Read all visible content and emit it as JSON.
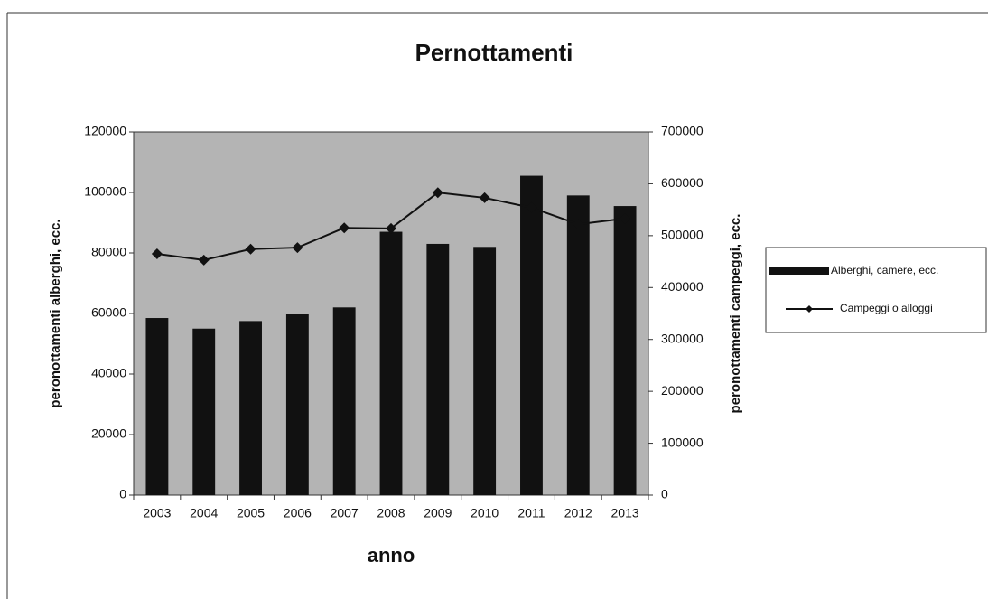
{
  "chart_data": {
    "type": "combo",
    "title": "Pernottamenti",
    "x_label": "anno",
    "y_label": "peronottamenti alberghi, ecc.",
    "y2_label": "peronottamenti campeggi, ecc.",
    "categories": [
      "2003",
      "2004",
      "2005",
      "2006",
      "2007",
      "2008",
      "2009",
      "2010",
      "2011",
      "2012",
      "2013"
    ],
    "series": [
      {
        "name": "Alberghi, camere, ecc.",
        "type": "bar",
        "color": "#111111",
        "values": [
          58500,
          55000,
          57500,
          60000,
          62000,
          87000,
          83000,
          82000,
          105500,
          99000,
          95500
        ]
      },
      {
        "name": "Campeggi o alloggi",
        "type": "line",
        "axis": "y2",
        "color": "#111111",
        "values": [
          465000,
          453000,
          474000,
          477000,
          515000,
          514000,
          583000,
          573000,
          554000,
          522000,
          533000
        ]
      }
    ],
    "ylim": [
      0,
      120000
    ],
    "yticks": [
      0,
      20000,
      40000,
      60000,
      80000,
      100000,
      120000
    ],
    "y2lim": [
      0,
      700000
    ],
    "y2ticks": [
      0,
      100000,
      200000,
      300000,
      400000,
      500000,
      600000,
      700000
    ],
    "plot_background": "#b4b4b4",
    "legend": "right"
  }
}
